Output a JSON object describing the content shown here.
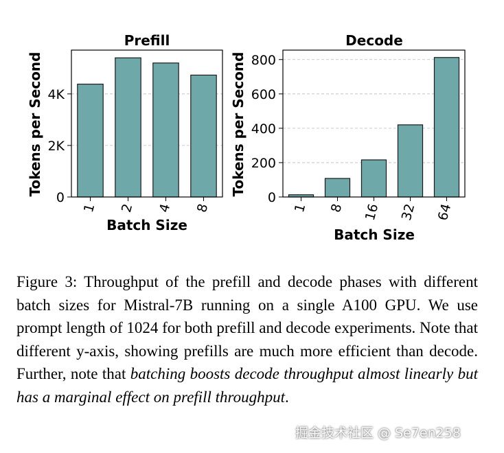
{
  "chart_data": [
    {
      "type": "bar",
      "title": "Prefill",
      "xlabel": "Batch Size",
      "ylabel": "Tokens per Second",
      "categories": [
        "1",
        "2",
        "4",
        "8"
      ],
      "values": [
        4380,
        5400,
        5200,
        4730
      ],
      "ylim": [
        0,
        5700
      ],
      "yticks": [
        0,
        2000,
        4000
      ],
      "ytick_labels": [
        "0",
        "2K",
        "4K"
      ],
      "grid": true,
      "bar_color": "#6fa8a8"
    },
    {
      "type": "bar",
      "title": "Decode",
      "xlabel": "Batch Size",
      "ylabel": "Tokens per Second",
      "categories": [
        "1",
        "8",
        "16",
        "32",
        "64"
      ],
      "values": [
        13,
        108,
        216,
        420,
        812
      ],
      "ylim": [
        0,
        855
      ],
      "yticks": [
        0,
        200,
        400,
        600,
        800
      ],
      "ytick_labels": [
        "0",
        "200",
        "400",
        "600",
        "800"
      ],
      "grid": true,
      "bar_color": "#6fa8a8"
    }
  ],
  "caption": {
    "plain": "Figure 3: Throughput of the prefill and decode phases with different batch sizes for Mistral-7B running on a single A100 GPU. We use prompt length of 1024 for both prefill and decode experiments. Note that different y-axis, showing prefills are much more efficient than decode. Further, note that ",
    "italic": "batching boosts decode throughput almost linearly but has a marginal effect on prefill throughput",
    "end": "."
  },
  "watermark": "掘金技术社区 @ Se7en258"
}
